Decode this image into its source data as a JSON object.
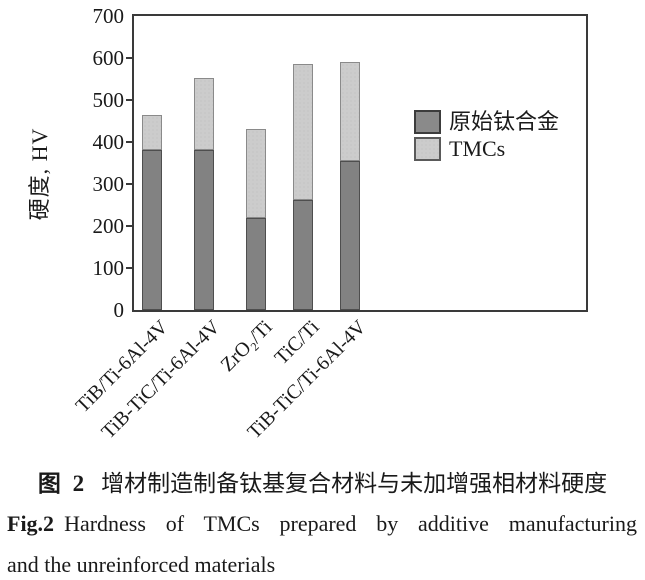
{
  "figure": {
    "ylabel": "硬度, HV",
    "axis_color": "#3a3a3a",
    "legend": [
      {
        "label": "原始钛合金",
        "color": "#8a8a8a",
        "border": "#3c3c3c"
      },
      {
        "label": "TMCs",
        "color": "#cccccc",
        "border": "#5a5a5a"
      }
    ]
  },
  "chart_data": {
    "type": "bar",
    "stacked": true,
    "categories": [
      "TiB/Ti-6Al-4V",
      "TiB-TiC/Ti-6Al-4V",
      "ZrO₂/Ti",
      "TiC/Ti",
      "TiB-TiC/Ti-6Al-4V"
    ],
    "series": [
      {
        "name": "原始钛合金",
        "role": "base-segment",
        "values": [
          380,
          380,
          220,
          262,
          355
        ],
        "color": "#828282"
      },
      {
        "name": "TMCs",
        "role": "stacked-total",
        "values": [
          465,
          553,
          432,
          586,
          590
        ],
        "color": "#cccccc"
      }
    ],
    "title": "",
    "xlabel": "",
    "ylabel": "硬度, HV",
    "ylim": [
      0,
      700
    ],
    "yticks": [
      0,
      100,
      200,
      300,
      400,
      500,
      600,
      700
    ],
    "grid": false,
    "legend_position": "inside-right"
  },
  "caption": {
    "zh_label": "图 2",
    "zh_text": "增材制造制备钛基复合材料与未加增强相材料硬度",
    "en_label": "Fig.2",
    "en_line1": "Hardness of TMCs prepared by additive manufacturing",
    "en_line2": "and the unreinforced materials"
  }
}
